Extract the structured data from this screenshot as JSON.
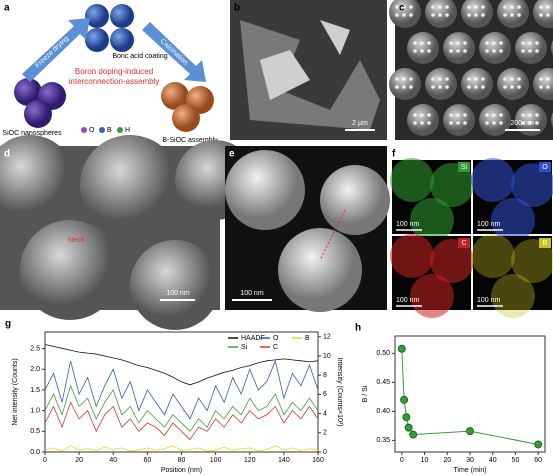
{
  "figure": {
    "a": {
      "label": "a",
      "freeze": "Freeze drying",
      "coating": "Boric acid coating",
      "calcination": "Calcination",
      "center": [
        "Boron doping-induced",
        "interconnection-assembly"
      ],
      "left": "SiOC nanospheres",
      "right": "B-SiOC assembly",
      "legend": [
        "O",
        "B",
        "H"
      ]
    },
    "b": {
      "label": "b",
      "scale": "2 μm"
    },
    "c": {
      "label": "c",
      "scale": "200 nm"
    },
    "d": {
      "label": "d",
      "scale": "100 nm",
      "neck": "Neck"
    },
    "e": {
      "label": "e",
      "scale": "100 nm"
    },
    "f": {
      "label": "f",
      "maps": [
        {
          "element": "Si",
          "scale": "100 nm"
        },
        {
          "element": "O",
          "scale": "100 nm"
        },
        {
          "element": "C",
          "scale": "100 nm"
        },
        {
          "element": "B",
          "scale": "100 nm"
        }
      ]
    }
  },
  "chart_data": [
    {
      "type": "line",
      "panel": "g",
      "x_label": "Position (nm)",
      "y_label": "Net intensity (Counts)",
      "y2_label": "Intensity (Counts×10³)",
      "x": [
        0,
        5,
        10,
        15,
        20,
        25,
        30,
        35,
        40,
        45,
        50,
        55,
        60,
        65,
        70,
        75,
        80,
        85,
        90,
        95,
        100,
        105,
        110,
        115,
        120,
        125,
        130,
        135,
        140,
        145,
        150,
        155,
        160
      ],
      "series": [
        {
          "name": "HAADF",
          "color": "#111111",
          "axis": "y2",
          "values": [
            11.2,
            11.0,
            10.8,
            10.6,
            10.4,
            10.3,
            10.2,
            10.0,
            9.8,
            9.6,
            9.3,
            9.0,
            8.8,
            8.5,
            8.2,
            7.8,
            7.3,
            7.0,
            7.3,
            7.7,
            8.0,
            8.3,
            8.5,
            8.8,
            9.0,
            9.3,
            9.5,
            9.6,
            9.7,
            9.6,
            9.5,
            9.4,
            9.5
          ]
        },
        {
          "name": "O",
          "color": "#2f5fb5",
          "values": [
            1.5,
            1.9,
            1.2,
            2.2,
            1.4,
            1.8,
            1.1,
            1.6,
            2.0,
            1.3,
            1.7,
            1.0,
            1.5,
            1.2,
            0.9,
            1.4,
            1.1,
            0.8,
            1.3,
            1.0,
            1.6,
            1.2,
            1.8,
            1.4,
            2.0,
            1.5,
            1.7,
            2.2,
            1.3,
            1.9,
            1.6,
            2.1,
            1.5
          ]
        },
        {
          "name": "B",
          "color": "#e8d42a",
          "values": [
            0.05,
            0.1,
            0.02,
            0.15,
            0.05,
            0.08,
            0.03,
            0.12,
            0.06,
            0.1,
            0.02,
            0.05,
            0.1,
            0.04,
            0.08,
            0.15,
            0.03,
            0.06,
            0.1,
            0.02,
            0.05,
            0.12,
            0.04,
            0.08,
            0.1,
            0.03,
            0.06,
            0.15,
            0.05,
            0.1,
            0.03,
            0.08,
            0.05
          ]
        },
        {
          "name": "Si",
          "color": "#3aa03a",
          "values": [
            1.0,
            1.4,
            0.9,
            1.6,
            1.1,
            1.3,
            0.8,
            1.2,
            1.5,
            0.9,
            1.1,
            0.7,
            1.0,
            0.8,
            0.6,
            0.9,
            0.7,
            0.5,
            0.8,
            0.6,
            1.0,
            0.8,
            1.1,
            0.9,
            1.3,
            1.0,
            1.1,
            1.4,
            0.9,
            1.2,
            1.0,
            1.3,
            1.0
          ]
        },
        {
          "name": "C",
          "color": "#d23a2a",
          "values": [
            0.7,
            1.1,
            0.6,
            1.2,
            0.8,
            1.0,
            0.5,
            0.9,
            1.1,
            0.6,
            0.8,
            0.5,
            0.7,
            0.6,
            0.4,
            0.7,
            0.5,
            0.3,
            0.6,
            0.5,
            0.8,
            0.6,
            0.9,
            0.7,
            1.0,
            0.8,
            0.9,
            1.1,
            0.7,
            1.0,
            0.8,
            1.1,
            0.8
          ]
        }
      ],
      "xlim": [
        0,
        160
      ],
      "xticks": [
        0,
        20,
        40,
        60,
        80,
        100,
        120,
        140,
        160
      ],
      "ylim": [
        0,
        2.9
      ],
      "yticks": [
        {
          "value": 0,
          "label": "0.0"
        },
        0.5,
        {
          "value": 1,
          "label": "1.0"
        },
        1.5,
        {
          "value": 2,
          "label": "2.0"
        },
        2.5
      ],
      "y2lim": [
        0,
        12.5
      ],
      "y2ticks": [
        0,
        2,
        4,
        6,
        8,
        10,
        12
      ],
      "legend": "top-right"
    },
    {
      "type": "line",
      "panel": "h",
      "markers": true,
      "x_label": "Time (min)",
      "y_label": "B / Si",
      "x": [
        0,
        1,
        2,
        3,
        5,
        30,
        60
      ],
      "series": [
        {
          "name": null,
          "color": "#3a9a3a",
          "values": [
            0.508,
            0.42,
            0.39,
            0.372,
            0.36,
            0.366,
            0.343
          ]
        }
      ],
      "xlim": [
        -3,
        63
      ],
      "xticks": [
        0,
        10,
        20,
        30,
        40,
        50,
        60
      ],
      "ylim": [
        0.33,
        0.53
      ],
      "yticks": [
        0.35,
        {
          "value": 0.4,
          "label": "0.40"
        },
        0.45,
        {
          "value": 0.5,
          "label": "0.50"
        }
      ]
    }
  ]
}
